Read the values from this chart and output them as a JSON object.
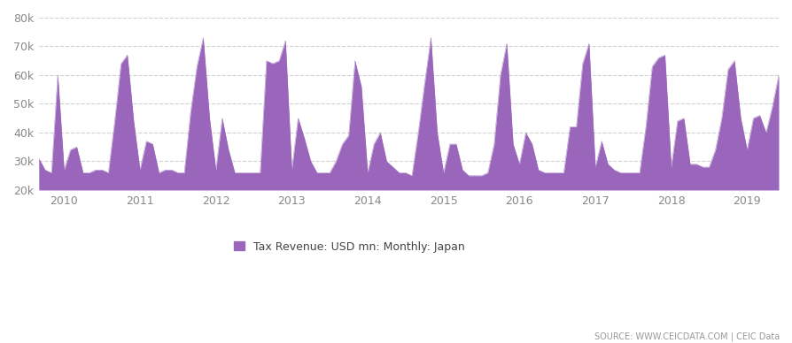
{
  "title": "Tax Revenue: USD mn: Monthly: Japan",
  "source_text": "SOURCE: WWW.CEICDATA.COM | CEIC Data",
  "fill_color": "#9966BB",
  "fill_alpha": 1.0,
  "bg_color": "#FFFFFF",
  "grid_color": "#CCCCCC",
  "tick_color": "#888888",
  "ylim": [
    20000,
    80000
  ],
  "yticks": [
    20000,
    30000,
    40000,
    50000,
    60000,
    70000,
    80000
  ],
  "ytick_labels": [
    "20k",
    "30k",
    "40k",
    "50k",
    "60k",
    "70k",
    "80k"
  ],
  "values": [
    31000,
    27000,
    26000,
    60000,
    27000,
    34000,
    35000,
    26000,
    26000,
    27000,
    27000,
    26000,
    44000,
    64000,
    67000,
    44000,
    27000,
    37000,
    36000,
    26000,
    27000,
    27000,
    26000,
    26000,
    47000,
    63000,
    73000,
    45000,
    27000,
    45000,
    34000,
    26000,
    26000,
    26000,
    26000,
    26000,
    65000,
    64000,
    65000,
    72000,
    27000,
    45000,
    38000,
    30000,
    26000,
    26000,
    26000,
    30000,
    36000,
    39000,
    65000,
    56000,
    26000,
    36000,
    40000,
    30000,
    28000,
    26000,
    26000,
    25000,
    40000,
    57000,
    73000,
    40000,
    26000,
    36000,
    36000,
    27000,
    25000,
    25000,
    25000,
    26000,
    36000,
    60000,
    71000,
    36000,
    29000,
    40000,
    36000,
    27000,
    26000,
    26000,
    26000,
    26000,
    42000,
    42000,
    64000,
    71000,
    28000,
    37000,
    29000,
    27000,
    26000,
    26000,
    26000,
    26000,
    42000,
    63000,
    66000,
    67000,
    28000,
    44000,
    45000,
    29000,
    29000,
    28000,
    28000,
    34000,
    45000,
    62000,
    65000,
    45000,
    34000,
    45000,
    46000,
    40000,
    49000,
    60000
  ],
  "xtick_years": [
    "2010",
    "2011",
    "2012",
    "2013",
    "2014",
    "2015",
    "2016",
    "2017",
    "2018",
    "2019"
  ],
  "xtick_month_offsets": [
    4,
    16,
    28,
    40,
    52,
    64,
    76,
    88,
    100,
    112
  ]
}
